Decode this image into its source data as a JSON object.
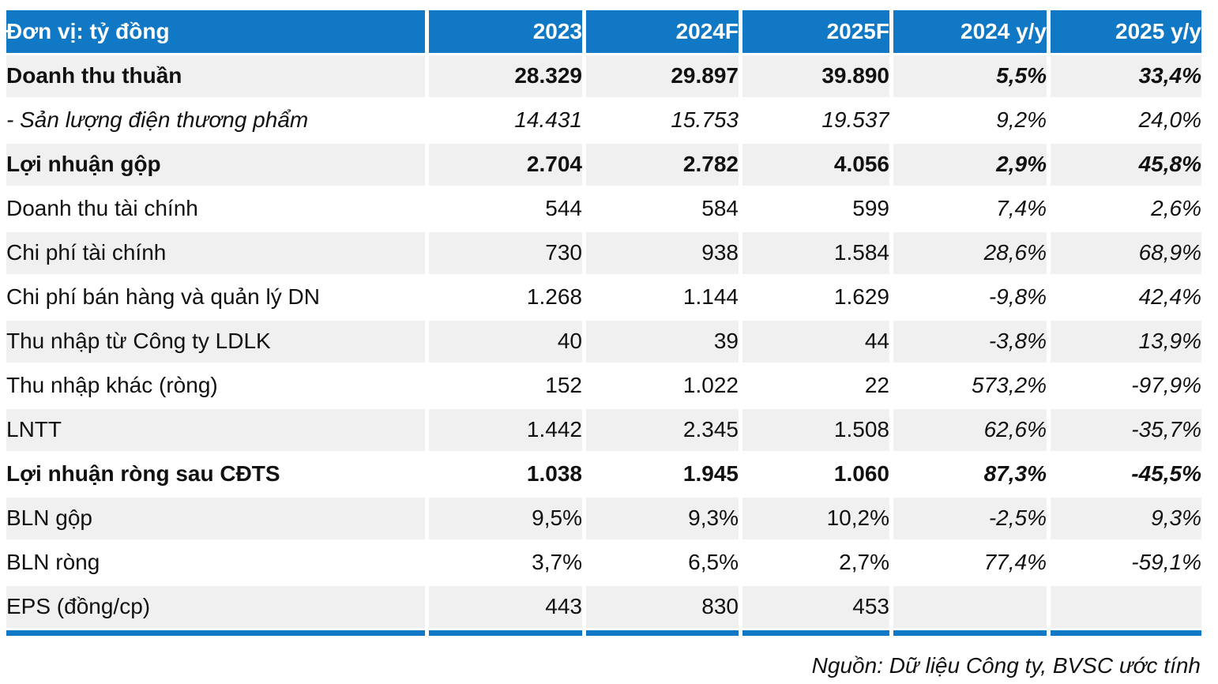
{
  "table": {
    "unit_label": "Đơn vị: tỷ đồng",
    "columns": [
      "2023",
      "2024F",
      "2025F",
      "2024 y/y",
      "2025 y/y"
    ],
    "rows": [
      {
        "label": "Doanh thu thuần",
        "values": [
          "28.329",
          "29.897",
          "39.890",
          "5,5%",
          "33,4%"
        ],
        "style": "bold"
      },
      {
        "label": "- Sản lượng điện thương phẩm",
        "values": [
          "14.431",
          "15.753",
          "19.537",
          "9,2%",
          "24,0%"
        ],
        "style": "italic"
      },
      {
        "label": "Lợi nhuận gộp",
        "values": [
          "2.704",
          "2.782",
          "4.056",
          "2,9%",
          "45,8%"
        ],
        "style": "bold"
      },
      {
        "label": "Doanh thu tài chính",
        "values": [
          "544",
          "584",
          "599",
          "7,4%",
          "2,6%"
        ],
        "style": "normal"
      },
      {
        "label": "Chi phí tài chính",
        "values": [
          "730",
          "938",
          "1.584",
          "28,6%",
          "68,9%"
        ],
        "style": "normal"
      },
      {
        "label": "Chi phí bán hàng và quản lý DN",
        "values": [
          "1.268",
          "1.144",
          "1.629",
          "-9,8%",
          "42,4%"
        ],
        "style": "normal"
      },
      {
        "label": "Thu nhập từ Công ty LDLK",
        "values": [
          "40",
          "39",
          "44",
          "-3,8%",
          "13,9%"
        ],
        "style": "normal"
      },
      {
        "label": "Thu nhập khác (ròng)",
        "values": [
          "152",
          "1.022",
          "22",
          "573,2%",
          "-97,9%"
        ],
        "style": "normal"
      },
      {
        "label": "LNTT",
        "values": [
          "1.442",
          "2.345",
          "1.508",
          "62,6%",
          "-35,7%"
        ],
        "style": "normal"
      },
      {
        "label": "Lợi nhuận ròng sau CĐTS",
        "values": [
          "1.038",
          "1.945",
          "1.060",
          "87,3%",
          "-45,5%"
        ],
        "style": "bold"
      },
      {
        "label": "BLN gộp",
        "values": [
          "9,5%",
          "9,3%",
          "10,2%",
          "-2,5%",
          "9,3%"
        ],
        "style": "normal"
      },
      {
        "label": "BLN ròng",
        "values": [
          "3,7%",
          "6,5%",
          "2,7%",
          "77,4%",
          "-59,1%"
        ],
        "style": "normal"
      },
      {
        "label": "EPS (đồng/cp)",
        "values": [
          "443",
          "830",
          "453",
          "",
          ""
        ],
        "style": "normal"
      }
    ],
    "source_note": "Nguồn: Dữ liệu Công ty, BVSC ước tính"
  },
  "colors": {
    "header_bg": "#1178C5",
    "header_text": "#FFFFFF",
    "row_alt_bg": "#F0F0F0",
    "row_bg": "#FFFFFF",
    "bottom_rule": "#1178C5",
    "body_text": "#111111"
  }
}
